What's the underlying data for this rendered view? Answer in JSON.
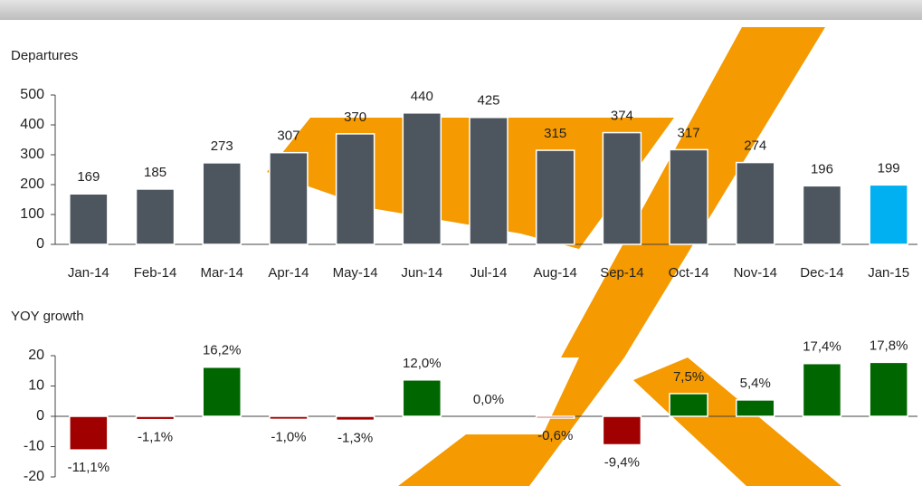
{
  "chart_data": [
    {
      "type": "bar",
      "title": "Departures",
      "categories": [
        "Jan-14",
        "Feb-14",
        "Mar-14",
        "Apr-14",
        "May-14",
        "Jun-14",
        "Jul-14",
        "Aug-14",
        "Sep-14",
        "Oct-14",
        "Nov-14",
        "Dec-14",
        "Jan-15"
      ],
      "values": [
        169,
        185,
        273,
        307,
        370,
        440,
        425,
        315,
        374,
        317,
        274,
        196,
        199
      ],
      "colors": [
        "#4d565e",
        "#4d565e",
        "#4d565e",
        "#4d565e",
        "#4d565e",
        "#4d565e",
        "#4d565e",
        "#4d565e",
        "#4d565e",
        "#4d565e",
        "#4d565e",
        "#4d565e",
        "#00b0f0"
      ],
      "ylim": [
        0,
        500
      ],
      "yticks": [
        0,
        100,
        200,
        300,
        400,
        500
      ]
    },
    {
      "type": "bar",
      "title": "YOY growth",
      "values": [
        -11.1,
        -1.1,
        16.2,
        -1.0,
        -1.3,
        12.0,
        0.0,
        -0.6,
        -9.4,
        7.5,
        5.4,
        17.4,
        17.8
      ],
      "value_labels": [
        "-11,1%",
        "-1,1%",
        "16,2%",
        "-1,0%",
        "-1,3%",
        "12,0%",
        "0,0%",
        "-0,6%",
        "-9,4%",
        "7,5%",
        "5,4%",
        "17,4%",
        "17,8%"
      ],
      "positive_color": "#006600",
      "negative_color": "#a00000",
      "ylim": [
        -20,
        20
      ],
      "yticks": [
        -20,
        -10,
        0,
        10,
        20
      ]
    }
  ]
}
